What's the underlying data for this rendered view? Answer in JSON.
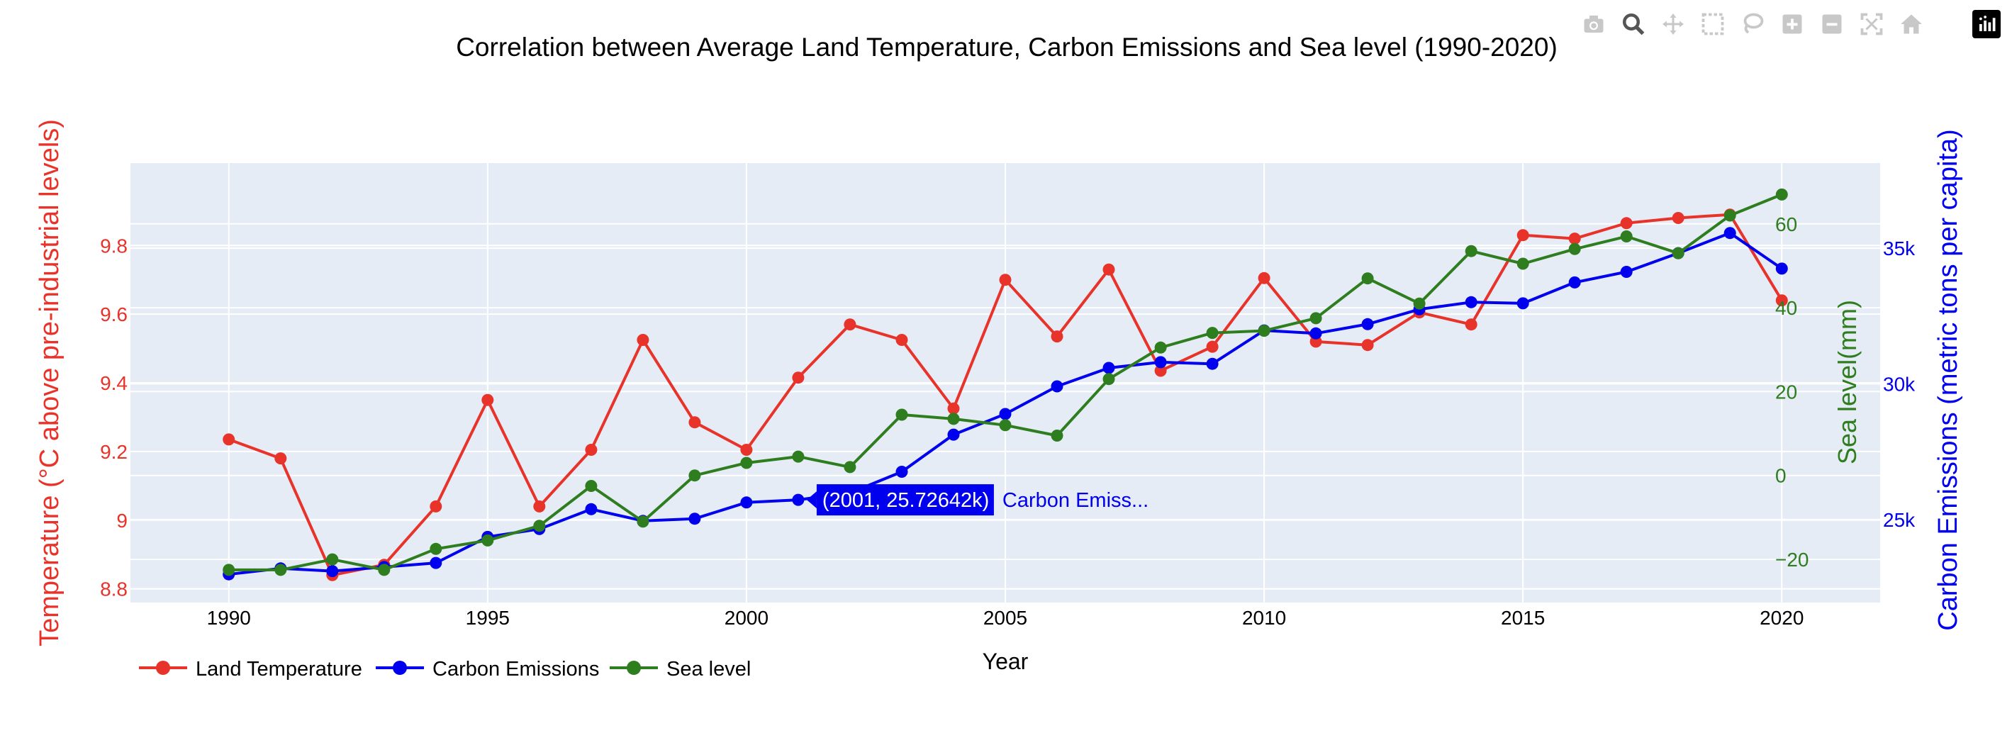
{
  "chart_data": {
    "type": "line",
    "title": "Correlation between Average Land Temperature, Carbon Emissions and Sea level (1990-2020)",
    "xlabel": "Year",
    "xlim": [
      1988.1,
      2021.9
    ],
    "xticks": [
      1990,
      1995,
      2000,
      2005,
      2010,
      2015,
      2020
    ],
    "x": [
      1990,
      1991,
      1992,
      1993,
      1994,
      1995,
      1996,
      1997,
      1998,
      1999,
      2000,
      2001,
      2002,
      2003,
      2004,
      2005,
      2006,
      2007,
      2008,
      2009,
      2010,
      2011,
      2012,
      2013,
      2014,
      2015,
      2016,
      2017,
      2018,
      2019,
      2020
    ],
    "grid": true,
    "plot_background": "#E5ECF6",
    "legend_position": "bottom-left",
    "axes": {
      "y_left": {
        "label": "Temperature (°C above pre-industrial levels)",
        "color": "#E8332A",
        "range": [
          8.76,
          10.04
        ],
        "ticks": [
          8.8,
          9.0,
          9.2,
          9.4,
          9.6,
          9.8
        ],
        "tick_labels": [
          "8.8",
          "9",
          "9.2",
          "9.4",
          "9.6",
          "9.8"
        ]
      },
      "y_right": {
        "label": "Carbon Emissions (metric tons per capita)",
        "color": "#0000EE",
        "range": [
          21940,
          38140
        ],
        "ticks": [
          25000,
          30000,
          35000
        ],
        "tick_labels": [
          "25k",
          "30k",
          "35k"
        ]
      },
      "y_right_inner": {
        "label": "Sea level(mm)",
        "color": "#2E7D1E",
        "range": [
          -30.3,
          74.5
        ],
        "ticks": [
          -20,
          0,
          20,
          40,
          60
        ],
        "tick_labels": [
          "−20",
          "0",
          "20",
          "40",
          "60"
        ]
      }
    },
    "series": [
      {
        "name": "Land Temperature",
        "axis": "y_left",
        "color": "#E8332A",
        "values": [
          9.235,
          9.18,
          8.84,
          8.87,
          9.04,
          9.35,
          9.04,
          9.205,
          9.525,
          9.285,
          9.205,
          9.415,
          9.57,
          9.525,
          9.325,
          9.7,
          9.535,
          9.73,
          9.435,
          9.505,
          9.705,
          9.52,
          9.51,
          9.605,
          9.57,
          9.83,
          9.82,
          9.865,
          9.88,
          9.89,
          9.64
        ]
      },
      {
        "name": "Carbon Emissions",
        "axis": "y_right",
        "color": "#0000EE",
        "values": [
          22980,
          23200,
          23100,
          23250,
          23400,
          24360,
          24650,
          25380,
          24950,
          25030,
          25630,
          25726.42,
          25980,
          26760,
          28130,
          28890,
          29910,
          30590,
          30800,
          30740,
          31970,
          31860,
          32200,
          32750,
          33010,
          32970,
          33740,
          34130,
          34820,
          35560,
          34250
        ]
      },
      {
        "name": "Sea level",
        "axis": "y_right_inner",
        "color": "#2E7D1E",
        "values": [
          -22.5,
          -22.5,
          -20.0,
          -22.5,
          -17.5,
          -15.5,
          -12.0,
          -2.5,
          -11.0,
          0.0,
          3.0,
          4.5,
          2.0,
          14.5,
          13.5,
          12.0,
          9.5,
          23.0,
          30.5,
          34.0,
          34.5,
          37.5,
          47.0,
          41.0,
          53.5,
          50.5,
          54.0,
          57.0,
          53.0,
          62.0,
          67.0
        ]
      }
    ],
    "hover": {
      "series": "Carbon Emissions",
      "index": 11,
      "label": "(2001, 25.72642k)",
      "name": "Carbon Emiss..."
    }
  },
  "modebar": {
    "buttons": [
      "camera-icon",
      "zoom-icon",
      "pan-icon",
      "box-select-icon",
      "lasso-select-icon",
      "zoom-in-icon",
      "zoom-out-icon",
      "autoscale-icon",
      "reset-axes-icon"
    ],
    "logo": "plotly-logo-icon"
  }
}
